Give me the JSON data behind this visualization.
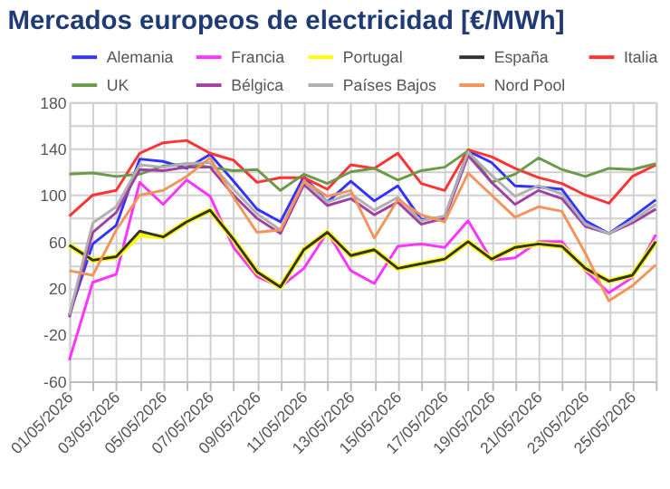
{
  "chart_data": {
    "type": "line",
    "title": "Mercados europeos de electricidad [€/MWh]",
    "x": [
      "2026-05-01",
      "2026-05-02",
      "2026-05-03",
      "2026-05-04",
      "2026-05-05",
      "2026-05-06",
      "2026-05-07",
      "2026-05-08",
      "2026-05-09",
      "2026-05-10",
      "2026-05-11",
      "2026-05-12",
      "2026-05-13",
      "2026-05-14",
      "2026-05-15",
      "2026-05-16",
      "2026-05-17",
      "2026-05-18",
      "2026-05-19",
      "2026-05-20",
      "2026-05-21",
      "2026-05-22",
      "2026-05-23",
      "2026-05-24",
      "2026-05-25",
      "2026-05-26"
    ],
    "xlim": [
      "2026-05-01",
      "2026-05-26"
    ],
    "xticks": [
      {
        "value": "2026-05-01",
        "label": "01/05/2026"
      },
      {
        "value": "2026-05-02",
        "label": null
      },
      {
        "value": "2026-05-03",
        "label": "03/05/2026"
      },
      {
        "value": "2026-05-04",
        "label": null
      },
      {
        "value": "2026-05-05",
        "label": "05/05/2026"
      },
      {
        "value": "2026-05-06",
        "label": null
      },
      {
        "value": "2026-05-07",
        "label": "07/05/2026"
      },
      {
        "value": "2026-05-08",
        "label": null
      },
      {
        "value": "2026-05-09",
        "label": "09/05/2026"
      },
      {
        "value": "2026-05-10",
        "label": null
      },
      {
        "value": "2026-05-11",
        "label": "11/05/2026"
      },
      {
        "value": "2026-05-12",
        "label": null
      },
      {
        "value": "2026-05-13",
        "label": "13/05/2026"
      },
      {
        "value": "2026-05-14",
        "label": null
      },
      {
        "value": "2026-05-15",
        "label": "15/05/2026"
      },
      {
        "value": "2026-05-16",
        "label": null
      },
      {
        "value": "2026-05-17",
        "label": "17/05/2026"
      },
      {
        "value": "2026-05-18",
        "label": null
      },
      {
        "value": "2026-05-19",
        "label": "19/05/2026"
      },
      {
        "value": "2026-05-20",
        "label": null
      },
      {
        "value": "2026-05-21",
        "label": "21/05/2026"
      },
      {
        "value": "2026-05-22",
        "label": null
      },
      {
        "value": "2026-05-23",
        "label": "23/05/2026"
      },
      {
        "value": "2026-05-24",
        "label": null
      },
      {
        "value": "2026-05-25",
        "label": "25/05/2026"
      },
      {
        "value": "2026-05-26",
        "label": null
      }
    ],
    "ylim": [
      -60,
      180
    ],
    "yticks": [
      -60,
      {
        "value": -40,
        "label": null
      },
      -20,
      {
        "value": 0,
        "label": null
      },
      20,
      {
        "value": 40,
        "label": null
      },
      60,
      {
        "value": 80,
        "label": null
      },
      100,
      {
        "value": 120,
        "label": null
      },
      140,
      {
        "value": 160,
        "label": null
      },
      180
    ],
    "grid": true,
    "legend": "top",
    "marker": "none",
    "line_style": "solid",
    "series": [
      {
        "name": "Alemania",
        "color": "#3333ff",
        "values": [
          -3,
          58,
          74,
          131,
          129,
          123,
          135,
          112,
          88,
          77,
          116,
          94,
          112,
          95,
          108,
          79,
          81,
          138,
          128,
          108,
          107,
          105,
          78,
          67,
          81,
          96
        ]
      },
      {
        "name": "Francia",
        "color": "#ff33ff",
        "values": [
          -42,
          25,
          32,
          111,
          92,
          113,
          99,
          55,
          30,
          21,
          37,
          68,
          35,
          24,
          56,
          58,
          55,
          78,
          44,
          46,
          60,
          60,
          35,
          16,
          29,
          66
        ]
      },
      {
        "name": "Portugal",
        "color": "#ffff00",
        "values": [
          57,
          44,
          47,
          66,
          64,
          77,
          87,
          62,
          34,
          21,
          53,
          68,
          48,
          53,
          37,
          41,
          45,
          60,
          45,
          55,
          58,
          56,
          37,
          26,
          31,
          60
        ]
      },
      {
        "name": "España",
        "color": "#333333",
        "values": [
          57,
          44,
          47,
          69,
          64,
          77,
          87,
          62,
          34,
          21,
          53,
          68,
          48,
          53,
          37,
          41,
          45,
          60,
          45,
          55,
          58,
          56,
          37,
          26,
          31,
          60
        ]
      },
      {
        "name": "Italia",
        "color": "#ff3333",
        "values": [
          82,
          100,
          104,
          136,
          145,
          147,
          136,
          130,
          111,
          115,
          115,
          105,
          126,
          123,
          136,
          110,
          104,
          139,
          133,
          123,
          115,
          110,
          100,
          93,
          116,
          126
        ]
      },
      {
        "name": "UK",
        "color": "#6a9a4a",
        "values": [
          118,
          119,
          116,
          118,
          125,
          127,
          124,
          121,
          122,
          104,
          118,
          110,
          120,
          123,
          113,
          121,
          124,
          138,
          111,
          118,
          132,
          122,
          116,
          123,
          122,
          127
        ]
      },
      {
        "name": "Bélgica",
        "color": "#a040a0",
        "values": [
          -5,
          68,
          85,
          122,
          121,
          124,
          124,
          100,
          80,
          67,
          109,
          91,
          97,
          83,
          94,
          75,
          80,
          134,
          111,
          92,
          104,
          97,
          73,
          67,
          76,
          88
        ]
      },
      {
        "name": "Países Bajos",
        "color": "#b0b0b0",
        "values": [
          -3,
          76,
          90,
          126,
          124,
          127,
          128,
          105,
          84,
          70,
          112,
          94,
          101,
          87,
          98,
          78,
          82,
          137,
          117,
          99,
          108,
          101,
          75,
          67,
          78,
          92
        ]
      },
      {
        "name": "Nord Pool",
        "color": "#f4945a",
        "values": [
          35,
          31,
          70,
          100,
          104,
          116,
          132,
          98,
          68,
          70,
          112,
          99,
          104,
          63,
          96,
          83,
          77,
          119,
          100,
          81,
          90,
          86,
          50,
          9,
          22,
          40
        ]
      }
    ]
  }
}
